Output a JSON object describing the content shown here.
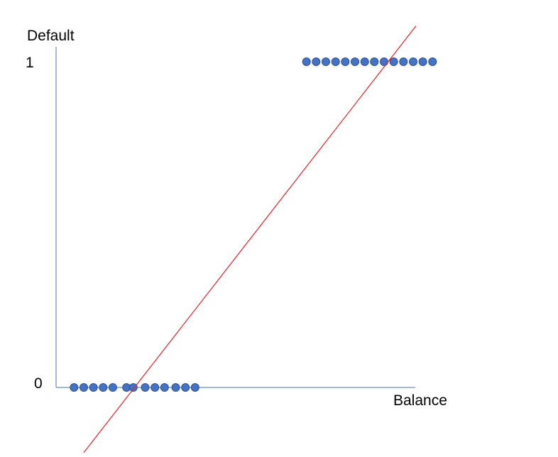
{
  "chart_data": {
    "type": "scatter",
    "title": "",
    "xlabel": "Balance",
    "ylabel": "Default",
    "y_ticks": [
      "0",
      "1"
    ],
    "ylim": [
      0,
      1
    ],
    "xlim": [
      0,
      100
    ],
    "grid": false,
    "series": [
      {
        "type": "scatter",
        "color": "#4472C4",
        "points": [
          {
            "x": 5.0,
            "y": 0
          },
          {
            "x": 7.7,
            "y": 0
          },
          {
            "x": 10.4,
            "y": 0
          },
          {
            "x": 13.1,
            "y": 0
          },
          {
            "x": 15.8,
            "y": 0
          },
          {
            "x": 19.6,
            "y": 0
          },
          {
            "x": 21.5,
            "y": 0
          },
          {
            "x": 24.8,
            "y": 0
          },
          {
            "x": 27.5,
            "y": 0
          },
          {
            "x": 30.2,
            "y": 0
          },
          {
            "x": 33.3,
            "y": 0
          },
          {
            "x": 36.0,
            "y": 0
          },
          {
            "x": 38.7,
            "y": 0
          },
          {
            "x": 69.7,
            "y": 1
          },
          {
            "x": 72.4,
            "y": 1
          },
          {
            "x": 75.1,
            "y": 1
          },
          {
            "x": 77.8,
            "y": 1
          },
          {
            "x": 80.5,
            "y": 1
          },
          {
            "x": 83.2,
            "y": 1
          },
          {
            "x": 85.9,
            "y": 1
          },
          {
            "x": 88.6,
            "y": 1
          },
          {
            "x": 91.3,
            "y": 1
          },
          {
            "x": 94.0,
            "y": 1
          },
          {
            "x": 96.7,
            "y": 1
          },
          {
            "x": 99.4,
            "y": 1
          },
          {
            "x": 102.1,
            "y": 1
          },
          {
            "x": 104.8,
            "y": 1
          }
        ]
      },
      {
        "type": "line",
        "color": "#E8202A",
        "points": [
          {
            "x": 7.7,
            "y": -0.2
          },
          {
            "x": 100.2,
            "y": 1.11
          }
        ]
      }
    ]
  },
  "colors": {
    "axis": "#4472C4",
    "point": "#4472C4",
    "trend_line": "#E8202A"
  }
}
